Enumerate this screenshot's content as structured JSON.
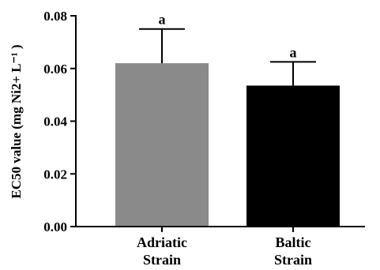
{
  "chart_data": {
    "type": "bar",
    "categories": [
      [
        "Adriatic",
        "Strain"
      ],
      [
        "Baltic",
        "Strain"
      ]
    ],
    "values": [
      0.062,
      0.0535
    ],
    "errors": [
      0.013,
      0.009
    ],
    "significance": [
      "a",
      "a"
    ],
    "colors": [
      "#8a8a8a",
      "#000000"
    ],
    "ylabel": "EC50 value (mg Ni2+ L⁻¹ )",
    "ylim": [
      0,
      0.08
    ],
    "yticks": [
      "0.00",
      "0.02",
      "0.04",
      "0.06",
      "0.08"
    ],
    "grid": false
  }
}
